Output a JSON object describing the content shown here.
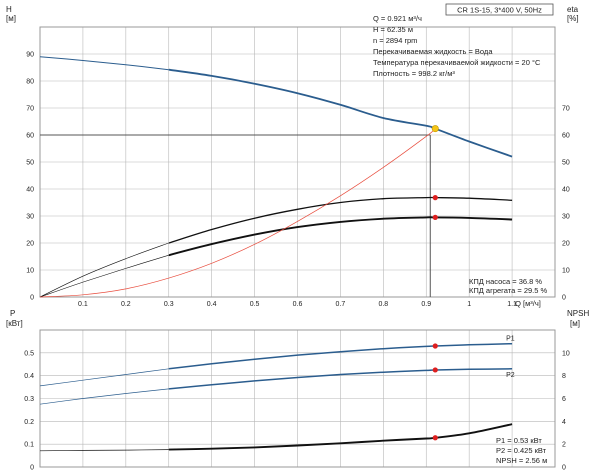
{
  "colors": {
    "blue": "#2b5d8e",
    "black": "#111111",
    "red": "#e84c3d",
    "redMarker": "#dd1f1f",
    "opPoint": "#f5c518",
    "grid": "#b8b8b8",
    "refLine": "#555555"
  },
  "chart_data": [
    {
      "type": "line",
      "panel": "top",
      "title": "CR 1S-15, 3*400 V, 50Hz",
      "ylabel_left": "H",
      "yunit_left": "[м]",
      "ylabel_right": "eta",
      "yunit_right": "[%]",
      "xlabel": "Q [м³/ч]",
      "xlim": [
        0,
        1.2
      ],
      "ylim_left": [
        0,
        100
      ],
      "ylim_right": [
        0,
        100
      ],
      "x_ticks": [
        "0.1",
        "0.2",
        "0.3",
        "0.4",
        "0.5",
        "0.6",
        "0.7",
        "0.8",
        "0.9",
        "1",
        "1.1"
      ],
      "y_ticks_left": [
        "0",
        "10",
        "20",
        "30",
        "40",
        "50",
        "60",
        "70",
        "80",
        "90"
      ],
      "y_ticks_right": [
        "0",
        "10",
        "20",
        "30",
        "40",
        "50",
        "60",
        "70"
      ],
      "info": [
        "Q = 0.921 м³/ч",
        "H = 62.35 м",
        "n = 2894 rpm",
        "Перекачиваемая жидкость = Вода",
        "Температура перекачиваемой жидкости = 20 °C",
        "Плотность = 998.2 кг/м³"
      ],
      "legend": [
        "КПД насоса = 36.8 %",
        "КПД агрегата = 29.5 %"
      ],
      "operating_point": {
        "q": 0.921,
        "h": 62.35,
        "ref_h": 60
      },
      "series": [
        {
          "role": "head",
          "axis": "left",
          "x": [
            0,
            0.1,
            0.2,
            0.3,
            0.4,
            0.5,
            0.6,
            0.7,
            0.8,
            0.9,
            0.921,
            1.0,
            1.1
          ],
          "y": [
            89,
            87.6,
            86,
            84.2,
            81.9,
            79,
            75.5,
            71.2,
            66.3,
            63.4,
            62.35,
            57.6,
            52
          ]
        },
        {
          "role": "pump-eff",
          "axis": "right",
          "x": [
            0,
            0.1,
            0.2,
            0.3,
            0.4,
            0.5,
            0.6,
            0.7,
            0.8,
            0.9,
            0.921,
            1.0,
            1.1
          ],
          "y": [
            0,
            7.7,
            14.2,
            20,
            25,
            29.2,
            32.5,
            35,
            36.4,
            36.8,
            36.8,
            36.6,
            35.8
          ]
        },
        {
          "role": "unit-eff",
          "axis": "right",
          "x": [
            0,
            0.1,
            0.2,
            0.3,
            0.4,
            0.5,
            0.6,
            0.7,
            0.8,
            0.9,
            0.921,
            1.0,
            1.1
          ],
          "y": [
            0,
            5.5,
            10.6,
            15.5,
            19.6,
            23.1,
            25.9,
            27.8,
            29,
            29.5,
            29.5,
            29.3,
            28.7
          ]
        },
        {
          "role": "system",
          "axis": "left",
          "x": [
            0,
            0.1,
            0.2,
            0.3,
            0.4,
            0.5,
            0.6,
            0.7,
            0.8,
            0.9,
            0.921
          ],
          "y": [
            0,
            0.8,
            3,
            7,
            12.5,
            19.5,
            28,
            37.5,
            48,
            59.5,
            62.35
          ]
        }
      ]
    },
    {
      "type": "line",
      "panel": "bottom",
      "ylabel_left": "P",
      "yunit_left": "[кВт]",
      "ylabel_right": "NPSH",
      "yunit_right": "[м]",
      "xlim": [
        0,
        1.2
      ],
      "ylim_left": [
        0,
        0.6
      ],
      "ylim_right": [
        0,
        12
      ],
      "y_ticks_left": [
        "0",
        "0.1",
        "0.2",
        "0.3",
        "0.4",
        "0.5"
      ],
      "y_ticks_right": [
        "0",
        "2",
        "4",
        "6",
        "8",
        "10"
      ],
      "legend": [
        "P1 = 0.53 кВт",
        "P2 = 0.425 кВт",
        "NPSH = 2.56 м"
      ],
      "series": [
        {
          "name": "P1",
          "axis": "left",
          "x": [
            0,
            0.1,
            0.2,
            0.3,
            0.4,
            0.5,
            0.6,
            0.7,
            0.8,
            0.9,
            0.921,
            1.0,
            1.1
          ],
          "y": [
            0.355,
            0.38,
            0.405,
            0.43,
            0.452,
            0.472,
            0.49,
            0.505,
            0.518,
            0.528,
            0.53,
            0.535,
            0.54
          ]
        },
        {
          "name": "P2",
          "axis": "left",
          "x": [
            0,
            0.1,
            0.2,
            0.3,
            0.4,
            0.5,
            0.6,
            0.7,
            0.8,
            0.9,
            0.921,
            1.0,
            1.1
          ],
          "y": [
            0.275,
            0.3,
            0.322,
            0.342,
            0.36,
            0.377,
            0.392,
            0.405,
            0.415,
            0.423,
            0.425,
            0.428,
            0.43
          ]
        },
        {
          "role": "npsh",
          "axis": "right",
          "x": [
            0,
            0.1,
            0.2,
            0.3,
            0.4,
            0.5,
            0.6,
            0.7,
            0.8,
            0.9,
            0.921,
            1.0,
            1.1
          ],
          "y": [
            1.42,
            1.45,
            1.48,
            1.52,
            1.6,
            1.72,
            1.88,
            2.08,
            2.3,
            2.5,
            2.56,
            2.95,
            3.75
          ]
        }
      ]
    }
  ]
}
